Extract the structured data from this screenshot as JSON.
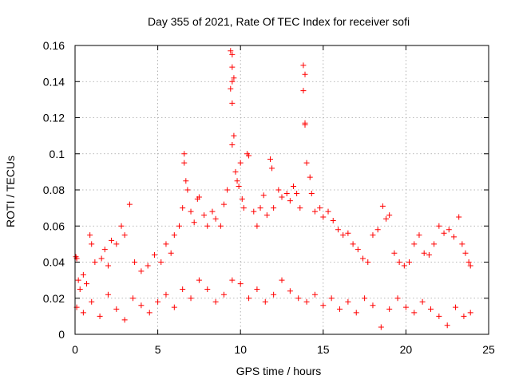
{
  "chart_data": {
    "type": "scatter",
    "title": "Day 355 of 2021, Rate Of TEC Index for receiver sofi",
    "xlabel": "GPS time / hours",
    "ylabel": "ROTI / TECUs",
    "xlim": [
      0,
      25
    ],
    "ylim": [
      0,
      0.16
    ],
    "xticks": [
      0,
      5,
      10,
      15,
      20,
      25
    ],
    "xtick_labels": [
      "0",
      "5",
      "10",
      "15",
      "20",
      "25"
    ],
    "yticks": [
      0,
      0.02,
      0.04,
      0.06,
      0.08,
      0.1,
      0.12,
      0.14,
      0.16
    ],
    "ytick_labels": [
      "0",
      "0.02",
      "0.04",
      "0.06",
      "0.08",
      "0.1",
      "0.12",
      "0.14",
      "0.16"
    ],
    "grid": true,
    "marker": "+",
    "marker_color": "#ff0000",
    "series": [
      {
        "name": "ROTI",
        "points": [
          [
            0.05,
            0.043
          ],
          [
            0.1,
            0.042
          ],
          [
            0.2,
            0.03
          ],
          [
            0.3,
            0.025
          ],
          [
            0.5,
            0.033
          ],
          [
            0.7,
            0.028
          ],
          [
            0.9,
            0.055
          ],
          [
            1.0,
            0.05
          ],
          [
            1.2,
            0.04
          ],
          [
            1.6,
            0.042
          ],
          [
            1.8,
            0.047
          ],
          [
            2.0,
            0.038
          ],
          [
            2.2,
            0.052
          ],
          [
            2.5,
            0.05
          ],
          [
            2.8,
            0.06
          ],
          [
            3.0,
            0.055
          ],
          [
            3.3,
            0.072
          ],
          [
            3.6,
            0.04
          ],
          [
            4.0,
            0.035
          ],
          [
            4.4,
            0.038
          ],
          [
            4.8,
            0.044
          ],
          [
            5.2,
            0.04
          ],
          [
            5.5,
            0.05
          ],
          [
            5.8,
            0.045
          ],
          [
            6.0,
            0.055
          ],
          [
            6.3,
            0.06
          ],
          [
            6.5,
            0.07
          ],
          [
            6.6,
            0.1
          ],
          [
            6.6,
            0.095
          ],
          [
            6.7,
            0.085
          ],
          [
            6.8,
            0.08
          ],
          [
            7.0,
            0.068
          ],
          [
            7.2,
            0.062
          ],
          [
            7.4,
            0.075
          ],
          [
            7.5,
            0.076
          ],
          [
            7.8,
            0.066
          ],
          [
            8.0,
            0.06
          ],
          [
            8.3,
            0.068
          ],
          [
            8.5,
            0.064
          ],
          [
            8.8,
            0.06
          ],
          [
            9.0,
            0.072
          ],
          [
            9.2,
            0.08
          ],
          [
            9.4,
            0.157
          ],
          [
            9.5,
            0.155
          ],
          [
            9.5,
            0.148
          ],
          [
            9.4,
            0.136
          ],
          [
            9.5,
            0.14
          ],
          [
            9.6,
            0.142
          ],
          [
            9.5,
            0.128
          ],
          [
            9.6,
            0.11
          ],
          [
            9.5,
            0.105
          ],
          [
            9.7,
            0.09
          ],
          [
            9.8,
            0.085
          ],
          [
            9.9,
            0.082
          ],
          [
            10.0,
            0.095
          ],
          [
            10.1,
            0.075
          ],
          [
            10.2,
            0.07
          ],
          [
            10.4,
            0.1
          ],
          [
            10.5,
            0.099
          ],
          [
            10.8,
            0.068
          ],
          [
            11.0,
            0.06
          ],
          [
            11.2,
            0.07
          ],
          [
            11.4,
            0.077
          ],
          [
            11.6,
            0.066
          ],
          [
            11.8,
            0.097
          ],
          [
            11.9,
            0.092
          ],
          [
            12.0,
            0.07
          ],
          [
            12.3,
            0.08
          ],
          [
            12.5,
            0.076
          ],
          [
            12.8,
            0.078
          ],
          [
            13.0,
            0.074
          ],
          [
            13.2,
            0.082
          ],
          [
            13.4,
            0.078
          ],
          [
            13.6,
            0.07
          ],
          [
            13.8,
            0.149
          ],
          [
            13.9,
            0.144
          ],
          [
            13.8,
            0.135
          ],
          [
            13.9,
            0.117
          ],
          [
            13.9,
            0.116
          ],
          [
            14.0,
            0.095
          ],
          [
            14.2,
            0.087
          ],
          [
            14.3,
            0.078
          ],
          [
            14.5,
            0.068
          ],
          [
            14.8,
            0.07
          ],
          [
            15.0,
            0.065
          ],
          [
            15.3,
            0.068
          ],
          [
            15.6,
            0.063
          ],
          [
            15.9,
            0.058
          ],
          [
            16.2,
            0.055
          ],
          [
            16.5,
            0.056
          ],
          [
            16.8,
            0.05
          ],
          [
            17.1,
            0.047
          ],
          [
            17.4,
            0.042
          ],
          [
            17.7,
            0.04
          ],
          [
            18.0,
            0.055
          ],
          [
            18.3,
            0.058
          ],
          [
            18.6,
            0.071
          ],
          [
            18.8,
            0.064
          ],
          [
            19.0,
            0.066
          ],
          [
            19.3,
            0.045
          ],
          [
            19.6,
            0.04
          ],
          [
            19.9,
            0.038
          ],
          [
            20.2,
            0.04
          ],
          [
            20.5,
            0.05
          ],
          [
            20.8,
            0.055
          ],
          [
            21.1,
            0.045
          ],
          [
            21.4,
            0.044
          ],
          [
            21.7,
            0.05
          ],
          [
            22.0,
            0.06
          ],
          [
            22.3,
            0.056
          ],
          [
            22.6,
            0.058
          ],
          [
            22.9,
            0.054
          ],
          [
            23.2,
            0.065
          ],
          [
            23.4,
            0.05
          ],
          [
            23.6,
            0.045
          ],
          [
            23.8,
            0.04
          ],
          [
            23.9,
            0.038
          ],
          [
            0.1,
            0.015
          ],
          [
            0.5,
            0.012
          ],
          [
            1.0,
            0.018
          ],
          [
            1.5,
            0.01
          ],
          [
            2.0,
            0.022
          ],
          [
            2.5,
            0.014
          ],
          [
            3.0,
            0.008
          ],
          [
            3.5,
            0.02
          ],
          [
            4.0,
            0.016
          ],
          [
            4.5,
            0.012
          ],
          [
            5.0,
            0.018
          ],
          [
            5.5,
            0.022
          ],
          [
            6.0,
            0.015
          ],
          [
            6.5,
            0.025
          ],
          [
            7.0,
            0.02
          ],
          [
            7.5,
            0.03
          ],
          [
            8.0,
            0.025
          ],
          [
            8.5,
            0.018
          ],
          [
            9.0,
            0.022
          ],
          [
            9.5,
            0.03
          ],
          [
            10.0,
            0.028
          ],
          [
            10.5,
            0.02
          ],
          [
            11.0,
            0.025
          ],
          [
            11.5,
            0.018
          ],
          [
            12.0,
            0.022
          ],
          [
            12.5,
            0.03
          ],
          [
            13.0,
            0.024
          ],
          [
            13.5,
            0.02
          ],
          [
            14.0,
            0.018
          ],
          [
            14.5,
            0.022
          ],
          [
            15.0,
            0.016
          ],
          [
            15.5,
            0.02
          ],
          [
            16.0,
            0.014
          ],
          [
            16.5,
            0.018
          ],
          [
            17.0,
            0.012
          ],
          [
            17.5,
            0.02
          ],
          [
            18.0,
            0.016
          ],
          [
            18.5,
            0.004
          ],
          [
            19.0,
            0.014
          ],
          [
            19.5,
            0.02
          ],
          [
            20.0,
            0.015
          ],
          [
            20.5,
            0.012
          ],
          [
            21.0,
            0.018
          ],
          [
            21.5,
            0.014
          ],
          [
            22.0,
            0.01
          ],
          [
            22.5,
            0.005
          ],
          [
            23.0,
            0.015
          ],
          [
            23.5,
            0.01
          ],
          [
            23.9,
            0.012
          ]
        ]
      }
    ]
  }
}
